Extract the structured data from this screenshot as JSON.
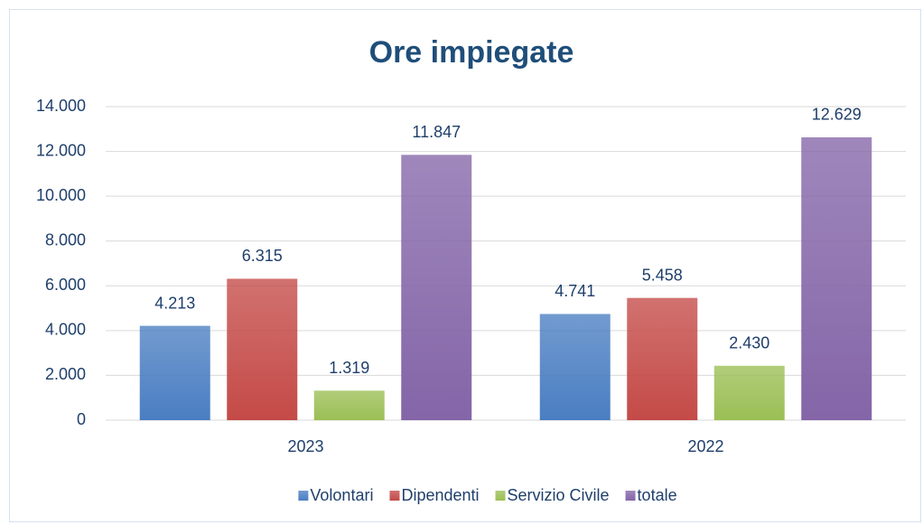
{
  "chart_data": {
    "type": "bar",
    "title": "Ore impiegate",
    "categories": [
      "2023",
      "2022"
    ],
    "series": [
      {
        "name": "Volontari",
        "color": "#4a7ec2",
        "values": [
          4213,
          4741
        ],
        "value_labels": [
          "4.213",
          "4.741"
        ]
      },
      {
        "name": "Dipendenti",
        "color": "#c44a47",
        "values": [
          6315,
          5458
        ],
        "value_labels": [
          "6.315",
          "5.458"
        ]
      },
      {
        "name": "Servizio Civile",
        "color": "#9bbf55",
        "values": [
          1319,
          2430
        ],
        "value_labels": [
          "1.319",
          "2.430"
        ]
      },
      {
        "name": "totale",
        "color": "#8465a8",
        "values": [
          11847,
          12629
        ],
        "value_labels": [
          "11.847",
          "12.629"
        ]
      }
    ],
    "ylim": [
      0,
      14000
    ],
    "yticks": [
      0,
      {
        "value": 2000,
        "label": "2.000"
      },
      {
        "value": 4000,
        "label": "4.000"
      },
      {
        "value": 6000,
        "label": "6.000"
      },
      {
        "value": 8000,
        "label": "8.000"
      },
      {
        "value": 10000,
        "label": "10.000"
      },
      {
        "value": 12000,
        "label": "12.000"
      },
      {
        "value": 14000,
        "label": "14.000"
      }
    ],
    "grid": true,
    "legend": "bottom"
  }
}
